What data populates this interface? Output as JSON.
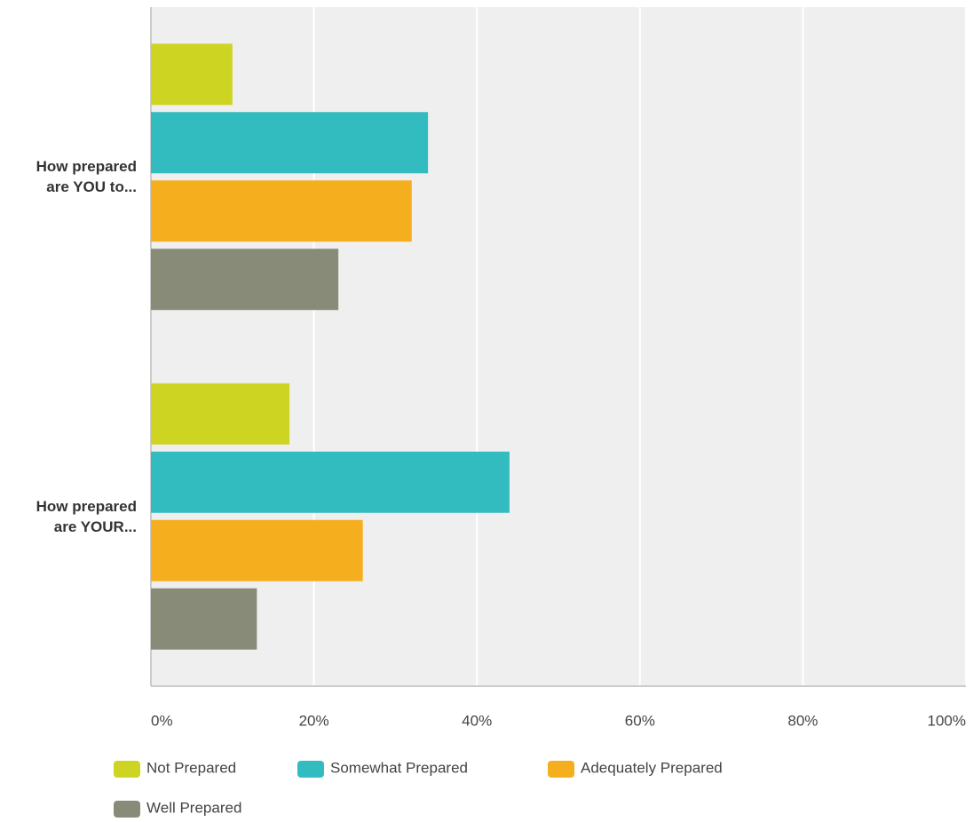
{
  "chart_data": {
    "type": "bar",
    "orientation": "horizontal",
    "categories": [
      "How prepared are YOU to...",
      "How prepared are YOUR..."
    ],
    "series": [
      {
        "name": "Not Prepared",
        "color": "#cdd422",
        "values": [
          10,
          17
        ]
      },
      {
        "name": "Somewhat Prepared",
        "color": "#33bcbf",
        "values": [
          34,
          44
        ]
      },
      {
        "name": "Adequately Prepared",
        "color": "#f5ae1e",
        "values": [
          32,
          26
        ]
      },
      {
        "name": "Well Prepared",
        "color": "#898b79",
        "values": [
          23,
          13
        ]
      }
    ],
    "xlim": [
      0,
      100
    ],
    "xticks": [
      {
        "value": 0,
        "label": "0%"
      },
      {
        "value": 20,
        "label": "20%"
      },
      {
        "value": 40,
        "label": "40%"
      },
      {
        "value": 60,
        "label": "60%"
      },
      {
        "value": 80,
        "label": "80%"
      },
      {
        "value": 100,
        "label": "100%"
      }
    ],
    "grid": true,
    "legend": "bottom"
  }
}
